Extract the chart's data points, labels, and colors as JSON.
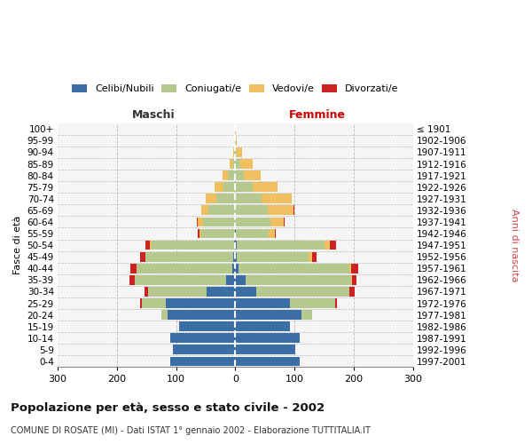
{
  "age_groups": [
    "0-4",
    "5-9",
    "10-14",
    "15-19",
    "20-24",
    "25-29",
    "30-34",
    "35-39",
    "40-44",
    "45-49",
    "50-54",
    "55-59",
    "60-64",
    "65-69",
    "70-74",
    "75-79",
    "80-84",
    "85-89",
    "90-94",
    "95-99",
    "100+"
  ],
  "birth_years": [
    "1997-2001",
    "1992-1996",
    "1987-1991",
    "1982-1986",
    "1977-1981",
    "1972-1976",
    "1967-1971",
    "1962-1966",
    "1957-1961",
    "1952-1956",
    "1947-1951",
    "1942-1946",
    "1937-1941",
    "1932-1936",
    "1927-1931",
    "1922-1926",
    "1917-1921",
    "1912-1916",
    "1907-1911",
    "1902-1906",
    "≤ 1901"
  ],
  "males_celibe": [
    110,
    105,
    110,
    95,
    115,
    118,
    48,
    15,
    5,
    3,
    2,
    0,
    0,
    0,
    0,
    0,
    0,
    0,
    0,
    0,
    0
  ],
  "males_coniugato": [
    0,
    0,
    0,
    0,
    10,
    40,
    100,
    155,
    162,
    148,
    140,
    58,
    55,
    45,
    32,
    20,
    12,
    5,
    2,
    1,
    0
  ],
  "males_vedovo": [
    0,
    0,
    0,
    0,
    0,
    0,
    0,
    0,
    0,
    1,
    2,
    3,
    8,
    12,
    18,
    15,
    10,
    5,
    1,
    0,
    0
  ],
  "males_divorziato": [
    0,
    0,
    0,
    0,
    0,
    2,
    5,
    8,
    10,
    8,
    8,
    2,
    2,
    1,
    0,
    0,
    0,
    0,
    0,
    0,
    0
  ],
  "females_nubile": [
    108,
    102,
    108,
    92,
    112,
    92,
    35,
    18,
    5,
    2,
    2,
    1,
    0,
    0,
    0,
    0,
    0,
    0,
    0,
    0,
    0
  ],
  "females_coniugata": [
    0,
    0,
    0,
    0,
    18,
    77,
    158,
    178,
    188,
    122,
    148,
    56,
    60,
    55,
    45,
    30,
    15,
    8,
    3,
    1,
    0
  ],
  "females_vedova": [
    0,
    0,
    0,
    0,
    0,
    0,
    0,
    1,
    3,
    5,
    10,
    10,
    22,
    44,
    50,
    42,
    28,
    22,
    8,
    2,
    1
  ],
  "females_divorziata": [
    0,
    0,
    0,
    0,
    0,
    2,
    8,
    8,
    12,
    8,
    10,
    2,
    2,
    1,
    0,
    0,
    0,
    0,
    0,
    0,
    0
  ],
  "colors": {
    "celibe": "#3a6ea5",
    "coniugato": "#b5c98e",
    "vedovo": "#f0c060",
    "divorziato": "#cc2222"
  },
  "xlim": 300,
  "title": "Popolazione per età, sesso e stato civile - 2002",
  "subtitle": "COMUNE DI ROSATE (MI) - Dati ISTAT 1° gennaio 2002 - Elaborazione TUTTITALIA.IT",
  "legend_labels": [
    "Celibi/Nubili",
    "Coniugati/e",
    "Vedovi/e",
    "Divorzati/e"
  ],
  "maschi_label": "Maschi",
  "femmine_label": "Femmine",
  "ylabel_left": "Fasce di età",
  "ylabel_right": "Anni di nascita",
  "bg_color": "#f5f5f5",
  "grid_color": "#bbbbbb",
  "center_line_color": "#aaaaaa",
  "fig_width": 6.0,
  "fig_height": 5.0
}
